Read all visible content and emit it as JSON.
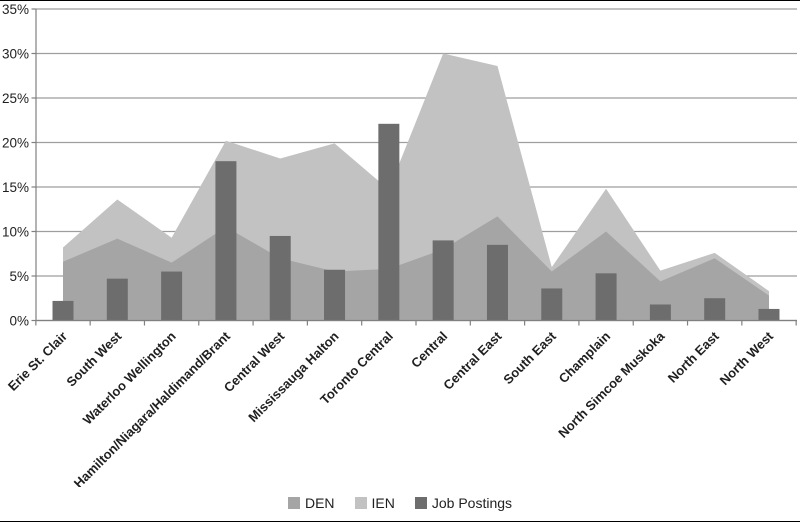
{
  "chart_data": {
    "type": "combo (overlapping area series + bar series)",
    "title": "",
    "xlabel": "",
    "ylabel": "",
    "ylim": [
      0,
      35
    ],
    "ytick_step": 5,
    "ytick_format": "percent",
    "ytick_labels": [
      "0%",
      "5%",
      "10%",
      "15%",
      "20%",
      "25%",
      "30%",
      "35%"
    ],
    "grid": "horizontal",
    "legend_position": "bottom",
    "categories": [
      "Erie St. Clair",
      "South West",
      "Waterloo Wellington",
      "Hamilton/Niagara/Haldimand/Brant",
      "Central West",
      "Mississauga Halton",
      "Toronto Central",
      "Central",
      "Central East",
      "South East",
      "Champlain",
      "North Simcoe Muskoka",
      "North East",
      "North West"
    ],
    "series": [
      {
        "name": "DEN",
        "kind": "area",
        "color": "#a5a5a5",
        "values": [
          6.6,
          9.2,
          6.5,
          10.5,
          7.0,
          5.5,
          5.8,
          8.0,
          11.7,
          5.5,
          10.0,
          4.4,
          7.0,
          2.8
        ]
      },
      {
        "name": "IEN",
        "kind": "area",
        "color": "#c2c2c2",
        "values": [
          8.2,
          13.6,
          9.3,
          20.2,
          18.2,
          19.9,
          14.7,
          30.0,
          28.6,
          6.0,
          14.8,
          5.6,
          7.6,
          3.3
        ]
      },
      {
        "name": "Job Postings",
        "kind": "bar",
        "color": "#6d6d6d",
        "values": [
          2.2,
          4.7,
          5.5,
          17.9,
          9.5,
          5.7,
          22.1,
          9.0,
          8.5,
          3.6,
          5.3,
          1.8,
          2.5,
          1.3
        ]
      }
    ],
    "colors": {
      "gridline": "#9e9e9e",
      "axis": "#808080",
      "text": "#1f1f1f"
    }
  }
}
